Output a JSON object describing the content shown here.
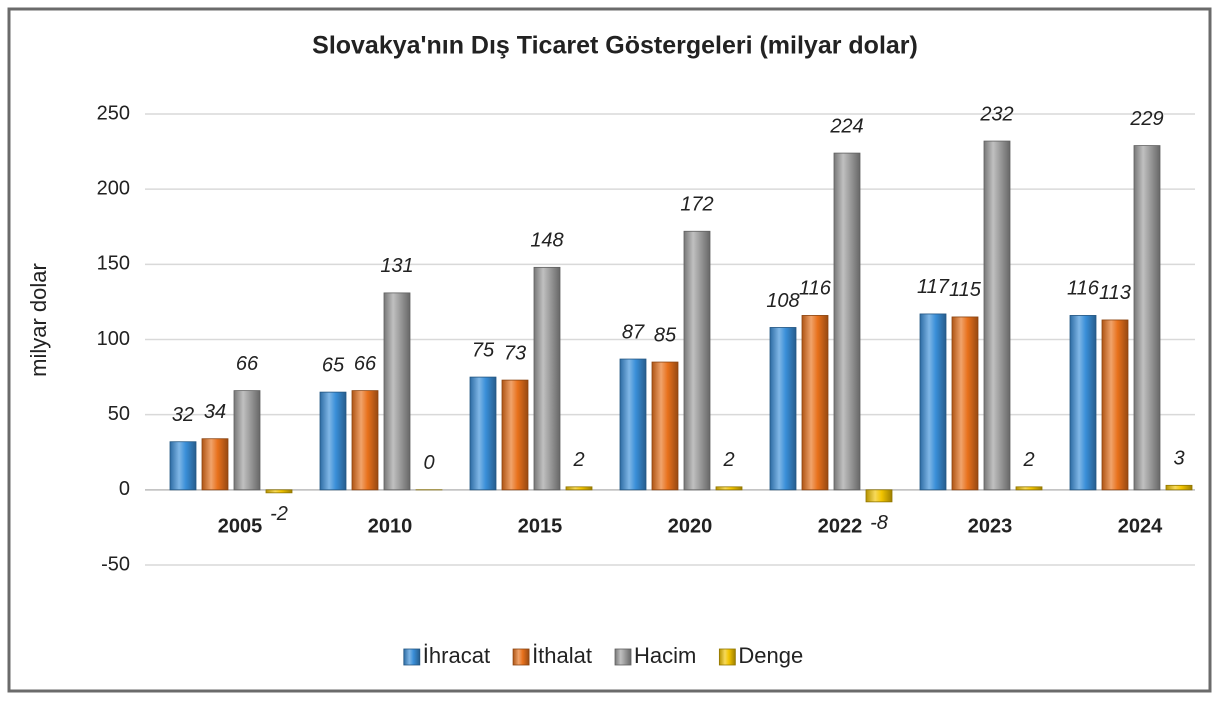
{
  "chart_data": {
    "type": "bar",
    "title": "Slovakya'nın Dış Ticaret Göstergeleri (milyar dolar)",
    "y_label": "milyar dolar",
    "categories": [
      "2005",
      "2010",
      "2015",
      "2020",
      "2022",
      "2023",
      "2024"
    ],
    "series": [
      {
        "name": "İhracat",
        "color": "#3a8fd9",
        "values": [
          32,
          65,
          75,
          87,
          108,
          117,
          116
        ]
      },
      {
        "name": "İthalat",
        "color": "#e8711c",
        "values": [
          34,
          66,
          73,
          85,
          116,
          115,
          113
        ]
      },
      {
        "name": "Hacim",
        "color": "#9e9e9e",
        "values": [
          66,
          131,
          148,
          172,
          224,
          232,
          229
        ]
      },
      {
        "name": "Denge",
        "color": "#f2c400",
        "values": [
          -2,
          0,
          2,
          2,
          -8,
          2,
          3
        ]
      }
    ],
    "ylim": [
      -50,
      250
    ],
    "yticks": [
      -50,
      0,
      50,
      100,
      150,
      200,
      250
    ],
    "grid": true,
    "legend": "bottom"
  }
}
